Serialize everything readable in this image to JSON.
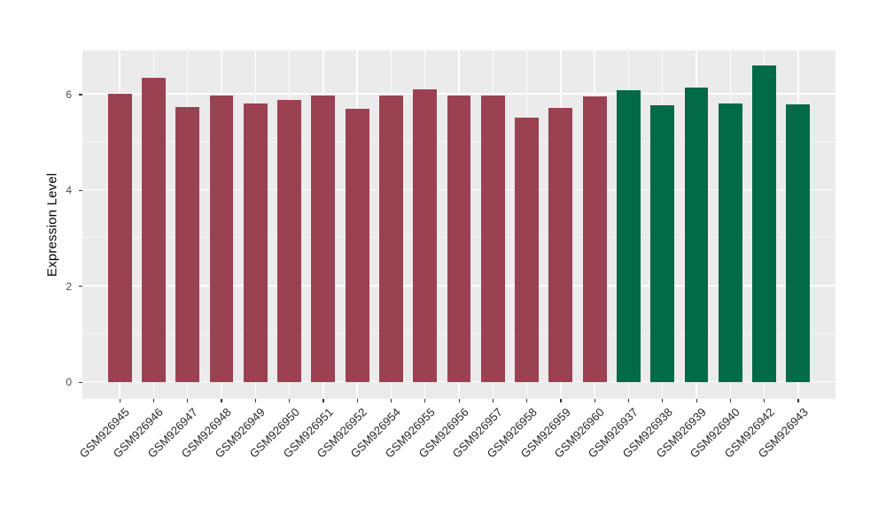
{
  "figure": {
    "background": "#FFFFFF",
    "panel_background": "#EBEBEB",
    "grid_color": "#FFFFFF",
    "tick_color": "#333333",
    "y_tick_label_color": "#4D4D4D",
    "x_tick_label_color": "#262626"
  },
  "chart_data": {
    "type": "bar",
    "title": "",
    "xlabel": "",
    "ylabel": "Expression Level",
    "categories": [
      "GSM926945",
      "GSM926946",
      "GSM926947",
      "GSM926948",
      "GSM926949",
      "GSM926950",
      "GSM926951",
      "GSM926952",
      "GSM926954",
      "GSM926955",
      "GSM926956",
      "GSM926957",
      "GSM926958",
      "GSM926959",
      "GSM926960",
      "GSM926937",
      "GSM926938",
      "GSM926939",
      "GSM926940",
      "GSM926942",
      "GSM926943"
    ],
    "values": [
      6.02,
      6.34,
      5.74,
      5.98,
      5.81,
      5.89,
      5.98,
      5.71,
      5.98,
      6.11,
      5.98,
      5.98,
      5.52,
      5.72,
      5.97,
      6.09,
      5.77,
      6.15,
      5.81,
      6.6,
      5.79
    ],
    "groups": [
      "group1",
      "group1",
      "group1",
      "group1",
      "group1",
      "group1",
      "group1",
      "group1",
      "group1",
      "group1",
      "group1",
      "group1",
      "group1",
      "group1",
      "group1",
      "group2",
      "group2",
      "group2",
      "group2",
      "group2",
      "group2"
    ],
    "group_colors": {
      "group1": "#9B4252",
      "group2": "#016A47"
    },
    "yticks": [
      0,
      2,
      4,
      6
    ],
    "yticks_minor": [
      1,
      3,
      5
    ],
    "ylim": [
      -0.35,
      6.92
    ],
    "bar_width_units": 0.7,
    "axis_padding_units": 0.6,
    "grid": true,
    "legend": "none"
  }
}
